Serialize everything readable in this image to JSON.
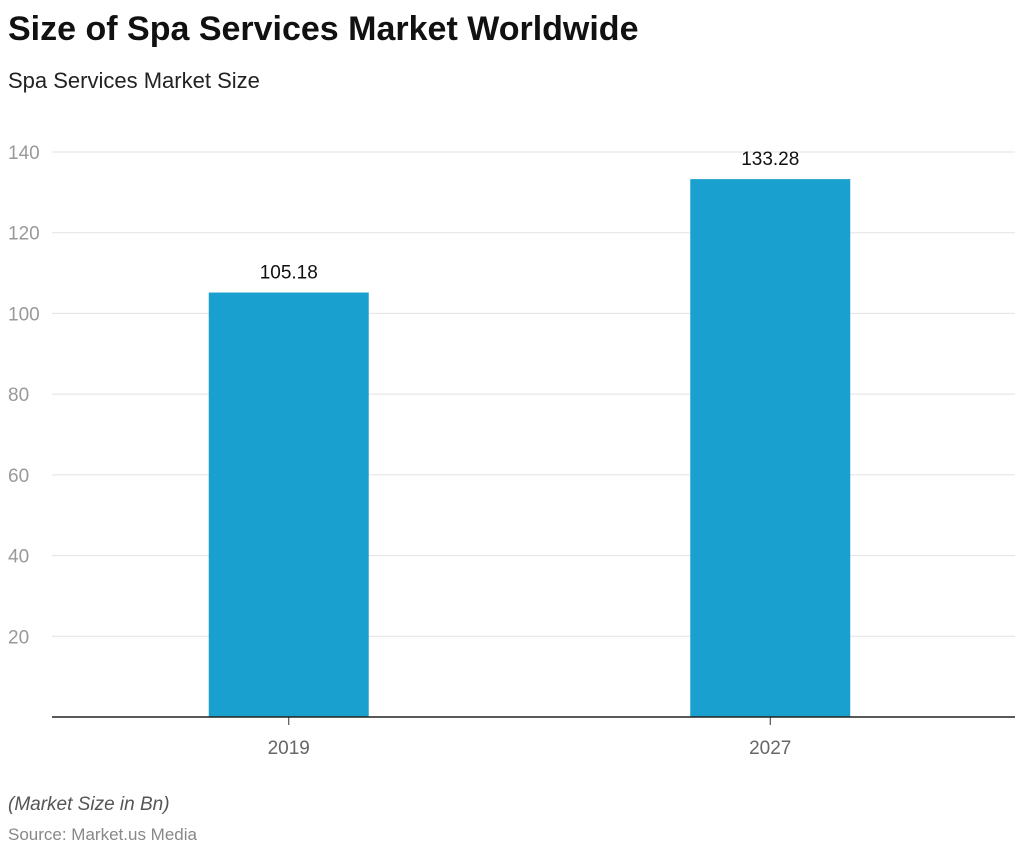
{
  "chart_data": {
    "type": "bar",
    "title": "Size of Spa Services Market Worldwide",
    "subtitle": "Spa Services Market Size",
    "categories": [
      "2019",
      "2027"
    ],
    "values": [
      105.18,
      133.28
    ],
    "value_labels": [
      "105.18",
      "133.28"
    ],
    "ylim": [
      0,
      140
    ],
    "yticks": [
      20,
      40,
      60,
      80,
      100,
      120,
      140
    ],
    "grid": true,
    "bar_color": "#1aa0cf",
    "note": "(Market Size in Bn)",
    "source": "Source: Market.us Media"
  }
}
